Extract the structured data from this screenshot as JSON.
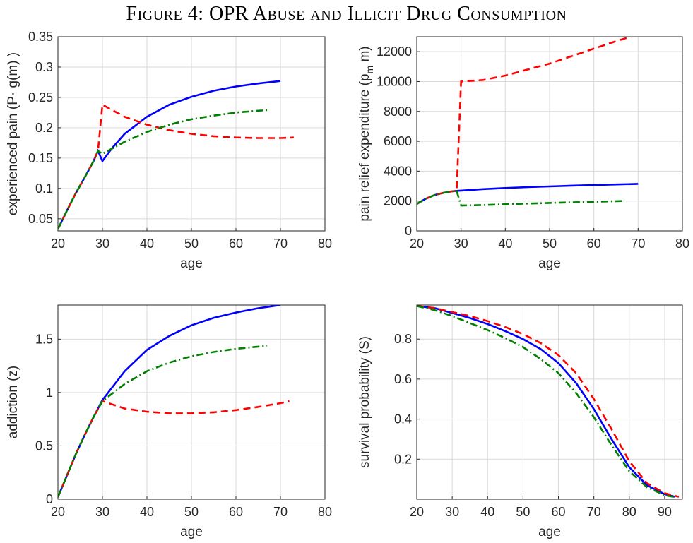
{
  "figure_title": "Figure 4: OPR Abuse and Illicit Drug Consumption",
  "colors": {
    "series_solid": "#0000ff",
    "series_dashed": "#ff0000",
    "series_dashdot": "#008000"
  },
  "chart_data": [
    {
      "type": "line",
      "xlabel": "age",
      "ylabel": "experienced pain (P· g(m) )",
      "xlim": [
        20,
        80
      ],
      "ylim": [
        0.03,
        0.35
      ],
      "xticks": [
        20,
        30,
        40,
        50,
        60,
        70,
        80
      ],
      "yticks": [
        0.05,
        0.1,
        0.15,
        0.2,
        0.25,
        0.3,
        0.35
      ],
      "ytick_labels": [
        "0.05",
        "0.1",
        "0.15",
        "0.2",
        "0.25",
        "0.3",
        "0.35"
      ],
      "grid": true,
      "series": [
        {
          "style": "solid",
          "x": [
            20,
            22,
            24,
            26,
            28,
            29,
            30,
            32,
            35,
            40,
            45,
            50,
            55,
            60,
            65,
            70
          ],
          "y": [
            0.033,
            0.063,
            0.092,
            0.118,
            0.145,
            0.162,
            0.145,
            0.165,
            0.19,
            0.218,
            0.238,
            0.251,
            0.261,
            0.268,
            0.273,
            0.277
          ]
        },
        {
          "style": "dashed",
          "x": [
            20,
            22,
            24,
            26,
            28,
            29,
            30,
            35,
            40,
            45,
            50,
            55,
            60,
            65,
            70,
            73
          ],
          "y": [
            0.033,
            0.063,
            0.092,
            0.118,
            0.145,
            0.162,
            0.238,
            0.218,
            0.205,
            0.196,
            0.19,
            0.186,
            0.184,
            0.183,
            0.183,
            0.184
          ]
        },
        {
          "style": "dashdot",
          "x": [
            20,
            22,
            24,
            26,
            28,
            29,
            30,
            32,
            35,
            40,
            45,
            50,
            55,
            60,
            65,
            67
          ],
          "y": [
            0.033,
            0.063,
            0.092,
            0.118,
            0.145,
            0.162,
            0.157,
            0.165,
            0.177,
            0.193,
            0.205,
            0.214,
            0.22,
            0.225,
            0.228,
            0.229
          ]
        }
      ]
    },
    {
      "type": "line",
      "xlabel": "age",
      "ylabel": "pain relief expenditure (p",
      "ylabel_sub": "m",
      "ylabel_end": " m)",
      "xlim": [
        20,
        80
      ],
      "ylim": [
        0,
        13000
      ],
      "xticks": [
        20,
        30,
        40,
        50,
        60,
        70,
        80
      ],
      "yticks": [
        0,
        2000,
        4000,
        6000,
        8000,
        10000,
        12000
      ],
      "ytick_labels": [
        "0",
        "2000",
        "4000",
        "6000",
        "8000",
        "10000",
        "12000"
      ],
      "grid": true,
      "series": [
        {
          "style": "solid",
          "x": [
            20,
            22,
            24,
            26,
            28,
            29,
            30,
            35,
            40,
            45,
            50,
            55,
            60,
            65,
            70
          ],
          "y": [
            1800,
            2150,
            2400,
            2550,
            2650,
            2680,
            2700,
            2800,
            2870,
            2930,
            2980,
            3030,
            3070,
            3110,
            3150
          ]
        },
        {
          "style": "dashed",
          "x": [
            20,
            22,
            24,
            26,
            28,
            29,
            30,
            35,
            40,
            45,
            50,
            55,
            60,
            65,
            70,
            73
          ],
          "y": [
            1800,
            2150,
            2400,
            2550,
            2650,
            2680,
            10000,
            10100,
            10400,
            10800,
            11200,
            11700,
            12200,
            12700,
            13150,
            13500
          ]
        },
        {
          "style": "dashdot",
          "x": [
            20,
            22,
            24,
            26,
            28,
            29,
            30,
            35,
            40,
            45,
            50,
            55,
            60,
            65,
            67
          ],
          "y": [
            1800,
            2150,
            2400,
            2550,
            2650,
            2680,
            1700,
            1730,
            1780,
            1830,
            1870,
            1910,
            1950,
            1990,
            2010
          ]
        }
      ]
    },
    {
      "type": "line",
      "xlabel": "age",
      "ylabel": "addiction (z)",
      "xlim": [
        20,
        80
      ],
      "ylim": [
        0,
        1.82
      ],
      "xticks": [
        20,
        30,
        40,
        50,
        60,
        70,
        80
      ],
      "yticks": [
        0,
        0.5,
        1,
        1.5
      ],
      "ytick_labels": [
        "0",
        "0.5",
        "1",
        "1.5"
      ],
      "grid": true,
      "series": [
        {
          "style": "solid",
          "x": [
            20,
            22,
            24,
            26,
            28,
            30,
            35,
            40,
            45,
            50,
            55,
            60,
            65,
            70
          ],
          "y": [
            0.02,
            0.22,
            0.42,
            0.6,
            0.77,
            0.93,
            1.2,
            1.4,
            1.53,
            1.63,
            1.7,
            1.75,
            1.79,
            1.82
          ]
        },
        {
          "style": "dashed",
          "x": [
            20,
            22,
            24,
            26,
            28,
            30,
            35,
            40,
            45,
            50,
            55,
            60,
            65,
            70,
            72
          ],
          "y": [
            0.02,
            0.22,
            0.42,
            0.6,
            0.77,
            0.92,
            0.85,
            0.82,
            0.805,
            0.805,
            0.815,
            0.835,
            0.865,
            0.9,
            0.92
          ]
        },
        {
          "style": "dashdot",
          "x": [
            20,
            22,
            24,
            26,
            28,
            30,
            35,
            40,
            45,
            50,
            55,
            60,
            65,
            67
          ],
          "y": [
            0.02,
            0.22,
            0.42,
            0.6,
            0.77,
            0.92,
            1.08,
            1.2,
            1.28,
            1.34,
            1.38,
            1.41,
            1.43,
            1.44
          ]
        }
      ]
    },
    {
      "type": "line",
      "xlabel": "age",
      "ylabel": "survival probability (S)",
      "xlim": [
        20,
        95
      ],
      "ylim": [
        0,
        0.97
      ],
      "xticks": [
        20,
        30,
        40,
        50,
        60,
        70,
        80,
        90
      ],
      "yticks": [
        0.2,
        0.4,
        0.6,
        0.8
      ],
      "ytick_labels": [
        "0.2",
        "0.4",
        "0.6",
        "0.8"
      ],
      "grid": true,
      "series": [
        {
          "style": "solid",
          "x": [
            20,
            25,
            30,
            35,
            40,
            45,
            50,
            55,
            60,
            65,
            70,
            75,
            80,
            85,
            90,
            93
          ],
          "y": [
            0.965,
            0.955,
            0.93,
            0.905,
            0.875,
            0.84,
            0.8,
            0.75,
            0.68,
            0.58,
            0.45,
            0.3,
            0.16,
            0.07,
            0.025,
            0.012
          ]
        },
        {
          "style": "dashed",
          "x": [
            20,
            25,
            30,
            35,
            40,
            45,
            50,
            55,
            60,
            65,
            70,
            75,
            80,
            85,
            90,
            94
          ],
          "y": [
            0.965,
            0.955,
            0.935,
            0.915,
            0.89,
            0.86,
            0.825,
            0.78,
            0.72,
            0.63,
            0.5,
            0.35,
            0.19,
            0.08,
            0.03,
            0.012
          ]
        },
        {
          "style": "dashdot",
          "x": [
            20,
            25,
            30,
            35,
            40,
            45,
            50,
            55,
            60,
            65,
            70,
            75,
            80,
            85,
            90,
            93
          ],
          "y": [
            0.965,
            0.945,
            0.915,
            0.88,
            0.845,
            0.805,
            0.76,
            0.7,
            0.63,
            0.53,
            0.41,
            0.27,
            0.14,
            0.06,
            0.02,
            0.01
          ]
        }
      ]
    }
  ]
}
